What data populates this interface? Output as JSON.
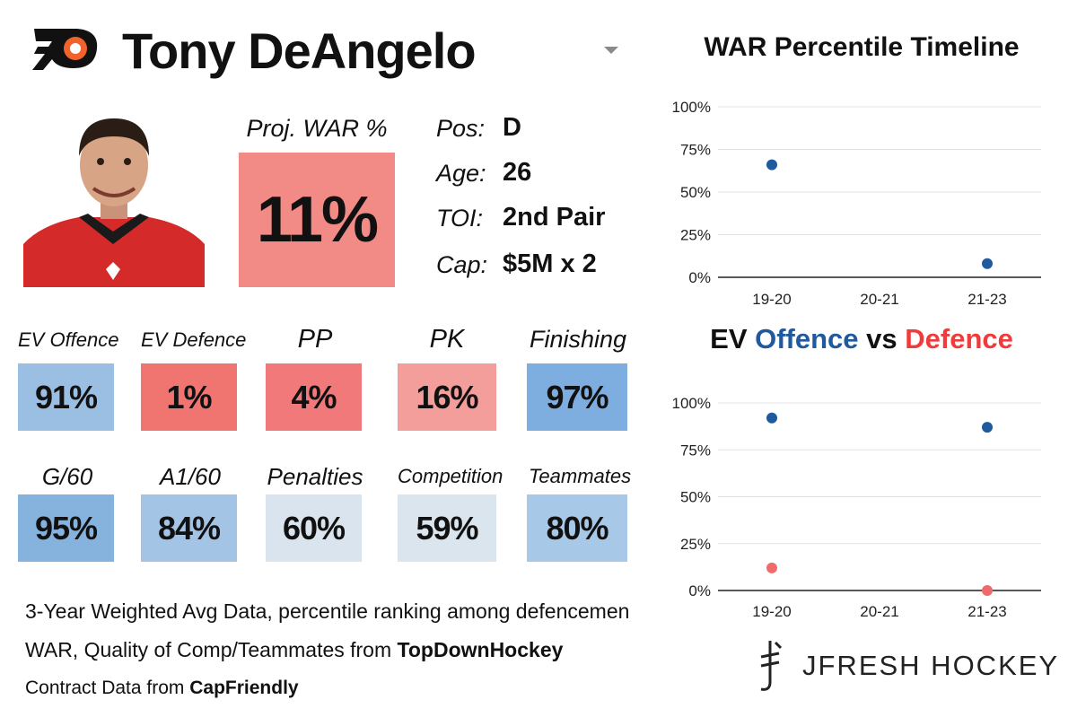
{
  "header": {
    "player_name": "Tony DeAngelo",
    "team_logo_icon": "flyers-logo-icon",
    "colors": {
      "brand_orange": "#f0632a",
      "brand_black": "#111111"
    }
  },
  "projection": {
    "label": "Proj. WAR %",
    "value": "11%",
    "color": "#f28b86"
  },
  "info": [
    {
      "label": "Pos:",
      "value": "D"
    },
    {
      "label": "Age:",
      "value": "26"
    },
    {
      "label": "TOI:",
      "value": "2nd Pair"
    },
    {
      "label": "Cap:",
      "value": "$5M x 2"
    }
  ],
  "stats_row1": [
    {
      "label": "EV Offence",
      "value": "91%",
      "color": "#9bbfe3"
    },
    {
      "label": "EV Defence",
      "value": "1%",
      "color": "#f07570"
    },
    {
      "label": "PP",
      "value": "4%",
      "color": "#f2797a"
    },
    {
      "label": "PK",
      "value": "16%",
      "color": "#f49e9c"
    },
    {
      "label": "Finishing",
      "value": "97%",
      "color": "#7eaedf"
    }
  ],
  "stats_row2": [
    {
      "label": "G/60",
      "value": "95%",
      "color": "#86b2de"
    },
    {
      "label": "A1/60",
      "value": "84%",
      "color": "#a4c4e5"
    },
    {
      "label": "Penalties",
      "value": "60%",
      "color": "#d9e4ee"
    },
    {
      "label": "Competition",
      "value": "59%",
      "color": "#dbe5ee"
    },
    {
      "label": "Teammates",
      "value": "80%",
      "color": "#a8c8e8"
    }
  ],
  "footer": {
    "line1": "3-Year Weighted Avg Data, percentile ranking among defencemen",
    "line2_prefix": "WAR, Quality of Comp/Teammates from ",
    "line2_source": "TopDownHockey",
    "line3_prefix": "Contract Data from ",
    "line3_source": "CapFriendly"
  },
  "chart_titles": {
    "war": "WAR Percentile Timeline",
    "ev_prefix": "EV ",
    "ev_offence": "Offence",
    "ev_vs": " vs ",
    "ev_defence": "Defence"
  },
  "brand": {
    "name": "JFRESH HOCKEY"
  },
  "chart_data": [
    {
      "type": "scatter",
      "title": "WAR Percentile Timeline",
      "categories": [
        "19-20",
        "20-21",
        "21-23"
      ],
      "y_ticks": [
        "0%",
        "25%",
        "50%",
        "75%",
        "100%"
      ],
      "ylim": [
        0,
        100
      ],
      "grid": true,
      "series": [
        {
          "color": "#1f5a9e",
          "values": [
            66,
            null,
            8
          ]
        }
      ]
    },
    {
      "type": "scatter",
      "title": "EV Offence vs Defence",
      "categories": [
        "19-20",
        "20-21",
        "21-23"
      ],
      "y_ticks": [
        "0%",
        "25%",
        "50%",
        "75%",
        "100%"
      ],
      "ylim": [
        0,
        100
      ],
      "grid": true,
      "series": [
        {
          "name": "Offence",
          "color": "#1f5a9e",
          "values": [
            92,
            null,
            87
          ]
        },
        {
          "name": "Defence",
          "color": "#ef6b6b",
          "values": [
            12,
            null,
            0
          ]
        }
      ]
    }
  ]
}
